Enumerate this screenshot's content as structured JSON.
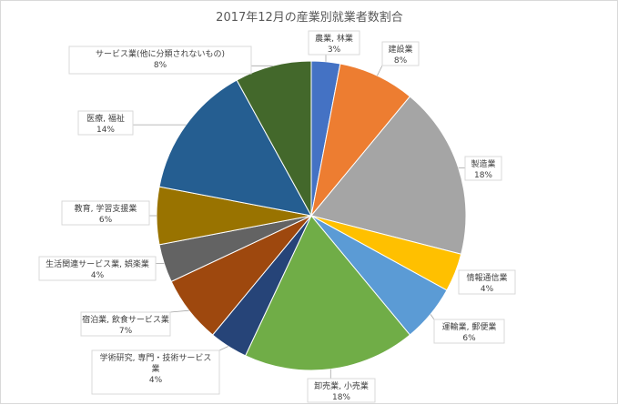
{
  "chart_data": {
    "type": "pie",
    "title": "2017年12月の産業別就業者数割合",
    "slices": [
      {
        "name": "農業, 林業",
        "pct_label": "3%",
        "value": 3,
        "color": "#4472C4"
      },
      {
        "name": "建設業",
        "pct_label": "8%",
        "value": 8,
        "color": "#ED7D31"
      },
      {
        "name": "製造業",
        "pct_label": "18%",
        "value": 18,
        "color": "#A5A5A5"
      },
      {
        "name": "情報通信業",
        "pct_label": "4%",
        "value": 4,
        "color": "#FFC000"
      },
      {
        "name": "運輸業, 郵便業",
        "pct_label": "6%",
        "value": 6,
        "color": "#5B9BD5"
      },
      {
        "name": "卸売業, 小売業",
        "pct_label": "18%",
        "value": 18,
        "color": "#70AD47"
      },
      {
        "name": "学術研究, 専門・技術サービス業",
        "pct_label": "4%",
        "value": 4,
        "color": "#264478"
      },
      {
        "name": "宿泊業, 飲食サービス業",
        "pct_label": "7%",
        "value": 7,
        "color": "#9E480E"
      },
      {
        "name": "生活関連サービス業, 娯楽業",
        "pct_label": "4%",
        "value": 4,
        "color": "#636363"
      },
      {
        "name": "教育, 学習支援業",
        "pct_label": "6%",
        "value": 6,
        "color": "#997300"
      },
      {
        "name": "医療, 福祉",
        "pct_label": "14%",
        "value": 14,
        "color": "#255E91"
      },
      {
        "name": "サービス業(他に分類されないもの)",
        "pct_label": "8%",
        "value": 8,
        "color": "#43682B"
      }
    ]
  }
}
